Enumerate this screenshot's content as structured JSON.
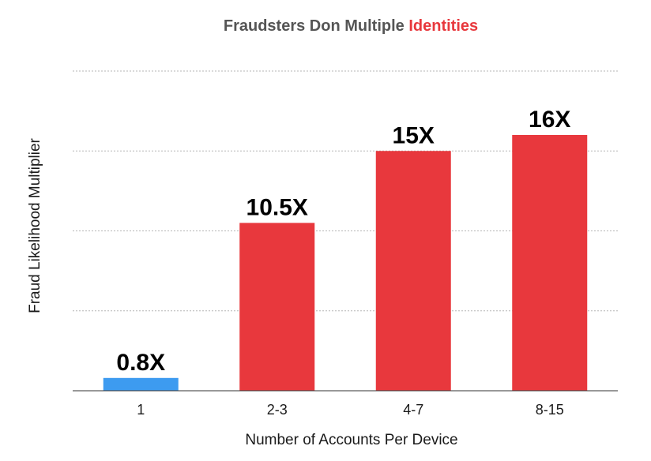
{
  "colors": {
    "title": "#555555",
    "title_highlight": "#e8383d",
    "baseline_bar": "#3d9bf0",
    "highlight_bar": "#e8383d",
    "grid": "#b5b5b5",
    "axis": "#333333"
  },
  "chart_data": {
    "type": "bar",
    "title": "Fraudsters Don Multiple Identities",
    "title_parts": [
      "Fraudsters Don Multiple ",
      "Identities"
    ],
    "xlabel": "Number of Accounts Per Device",
    "ylabel": "Fraud Likelihood Multiplier",
    "categories": [
      "1",
      "2-3",
      "4-7",
      "8-15"
    ],
    "values": [
      0.8,
      10.5,
      15,
      16
    ],
    "value_labels": [
      "0.8X",
      "10.5X",
      "15X",
      "16X"
    ],
    "bar_color_keys": [
      "baseline_bar",
      "highlight_bar",
      "highlight_bar",
      "highlight_bar"
    ],
    "ylim": [
      0,
      20
    ],
    "gridlines": [
      5,
      10,
      15,
      20
    ],
    "grid": true,
    "legend": "none"
  }
}
